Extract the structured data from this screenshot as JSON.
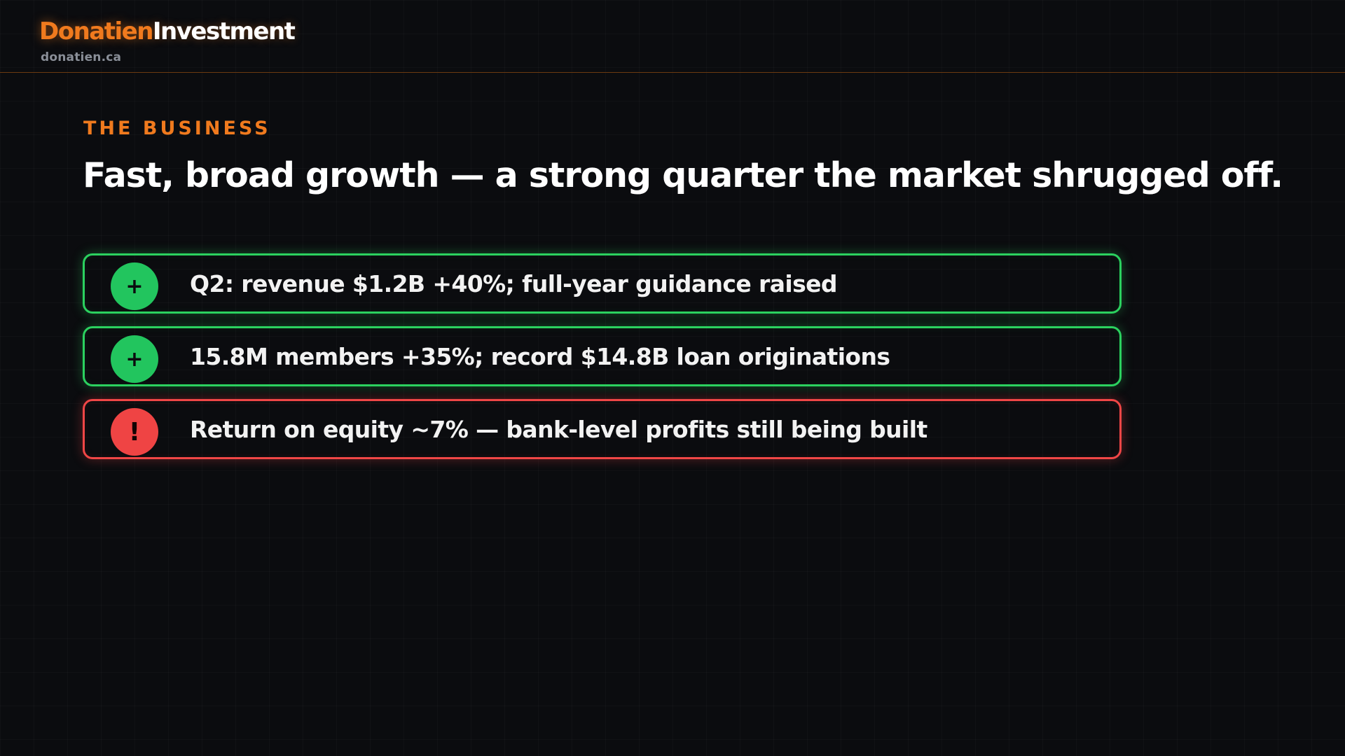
{
  "header": {
    "brand_primary": "Donatien",
    "brand_secondary": "Investment",
    "domain": "donatien.ca"
  },
  "slide": {
    "eyebrow": "THE BUSINESS",
    "headline": "Fast, broad growth — a strong quarter the market shrugged off.",
    "points": [
      {
        "status": "positive",
        "symbol": "+",
        "icon": "plus-icon",
        "text": "Q2: revenue $1.2B +40%; full-year guidance raised"
      },
      {
        "status": "positive",
        "symbol": "+",
        "icon": "plus-icon",
        "text": "15.8M members +35%; record $14.8B loan originations"
      },
      {
        "status": "warning",
        "symbol": "!",
        "icon": "exclamation-icon",
        "text": "Return on equity ~7% — bank-level profits still being built"
      }
    ]
  },
  "colors": {
    "accent": "#f07a1e",
    "positive": "#22c55e",
    "warning": "#ef4444",
    "background": "#0b0c0f"
  }
}
